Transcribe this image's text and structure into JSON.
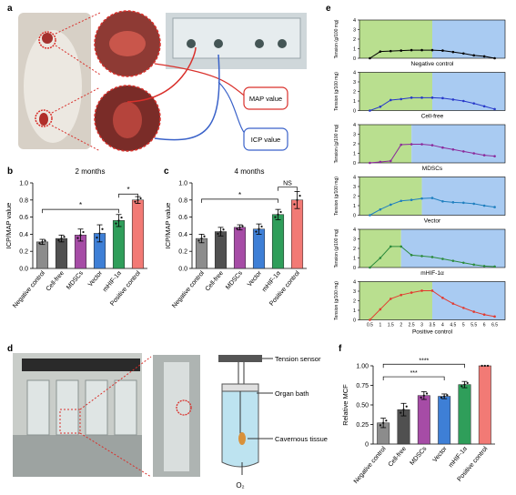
{
  "panel_labels": {
    "a": "a",
    "b": "b",
    "c": "c",
    "d": "d",
    "e": "e",
    "f": "f"
  },
  "panel_a": {
    "map_value": "MAP value",
    "icp_value": "ICP value",
    "colors": {
      "map": "#d9302b",
      "icp": "#3a62c9"
    }
  },
  "panel_d": {
    "tension_sensor": "Tension sensor",
    "organ_bath": "Organ bath",
    "cavernous_tissue": "Cavernous tissue",
    "o2": "O₂"
  },
  "chart_data": [
    {
      "id": "b",
      "type": "bar",
      "title": "2 months",
      "ylabel": "ICP/MAP value",
      "ylim": [
        0,
        1.0
      ],
      "yticks": [
        "0.0",
        "0.2",
        "0.4",
        "0.6",
        "0.8",
        "1.0"
      ],
      "categories": [
        "Negative control",
        "Cell-free",
        "MDSCs",
        "Vector",
        "mHIF-1α",
        "Positive control"
      ],
      "values": [
        0.31,
        0.35,
        0.39,
        0.41,
        0.56,
        0.8
      ],
      "errors": [
        0.03,
        0.04,
        0.07,
        0.1,
        0.07,
        0.04
      ],
      "colors": [
        "#8c8c8c",
        "#505050",
        "#a64ca6",
        "#3e7fd6",
        "#2f9e5a",
        "#f27a75"
      ],
      "sig_labels": [
        "*",
        "*"
      ]
    },
    {
      "id": "c",
      "type": "bar",
      "title": "4 months",
      "ylabel": "ICP/MAP value",
      "ylim": [
        0,
        1.0
      ],
      "yticks": [
        "0.0",
        "0.2",
        "0.4",
        "0.6",
        "0.8",
        "1.0"
      ],
      "categories": [
        "Negative control",
        "Cell-free",
        "MDSCs",
        "Vector",
        "mHIF-1α",
        "Positive control"
      ],
      "values": [
        0.35,
        0.43,
        0.48,
        0.46,
        0.63,
        0.8
      ],
      "errors": [
        0.05,
        0.05,
        0.03,
        0.06,
        0.06,
        0.1
      ],
      "colors": [
        "#8c8c8c",
        "#505050",
        "#a64ca6",
        "#3e7fd6",
        "#2f9e5a",
        "#f27a75"
      ],
      "sig_labels": [
        "*",
        "NS"
      ]
    },
    {
      "id": "f",
      "type": "bar",
      "ylabel": "Relative MCF",
      "ylim": [
        0,
        1.0
      ],
      "yticks": [
        "0",
        "0.25",
        "0.50",
        "0.75",
        "1.00"
      ],
      "categories": [
        "Negative control",
        "Cell-free",
        "MDSCs",
        "Vector",
        "mHIF-1α",
        "Positive control"
      ],
      "values": [
        0.27,
        0.44,
        0.62,
        0.61,
        0.76,
        1.0
      ],
      "errors": [
        0.06,
        0.08,
        0.05,
        0.03,
        0.04,
        0.0
      ],
      "colors": [
        "#8c8c8c",
        "#505050",
        "#a64ca6",
        "#3e7fd6",
        "#2f9e5a",
        "#f27a75"
      ],
      "sig_labels": [
        "***",
        "****"
      ]
    },
    {
      "id": "e",
      "type": "line",
      "ylabel": "Tension (g/100 mg)",
      "ylim": [
        0,
        4
      ],
      "yticks": [
        "0",
        "1",
        "2",
        "3",
        "4"
      ],
      "x": [
        0.5,
        1,
        1.5,
        2,
        2.5,
        3,
        3.5,
        4,
        4.5,
        5,
        5.5,
        6,
        6.5
      ],
      "xticks": [
        "0.5",
        "1",
        "1.5",
        "2",
        "2.5",
        "3",
        "3.5",
        "4",
        "4.5",
        "5",
        "5.5",
        "6",
        "6.5"
      ],
      "background_colors": {
        "green": "#b9df8f",
        "blue": "#a9cbf2"
      },
      "series": [
        {
          "name": "Negative control",
          "color": "#000000",
          "green_end": 3.5,
          "values": [
            0,
            0.7,
            0.75,
            0.8,
            0.85,
            0.85,
            0.85,
            0.8,
            0.65,
            0.5,
            0.3,
            0.2,
            0
          ]
        },
        {
          "name": "Cell-free",
          "color": "#2738c9",
          "green_end": 3.5,
          "values": [
            0,
            0.4,
            1.1,
            1.2,
            1.35,
            1.35,
            1.35,
            1.3,
            1.15,
            1.0,
            0.75,
            0.45,
            0.15
          ]
        },
        {
          "name": "MDSCs",
          "color": "#8b2a9b",
          "green_end": 2.5,
          "values": [
            0,
            0.1,
            0.2,
            1.9,
            1.95,
            1.95,
            1.85,
            1.6,
            1.4,
            1.2,
            1.0,
            0.8,
            0.7
          ]
        },
        {
          "name": "Vector",
          "color": "#1f7fbf",
          "green_end": 3.0,
          "values": [
            0,
            0.6,
            1.1,
            1.5,
            1.6,
            1.75,
            1.8,
            1.45,
            1.35,
            1.3,
            1.2,
            1.0,
            0.85
          ]
        },
        {
          "name": "mHIF-1α",
          "color": "#2c8b3c",
          "green_end": 2.0,
          "values": [
            0,
            1.0,
            2.2,
            2.2,
            1.3,
            1.2,
            1.1,
            0.9,
            0.7,
            0.5,
            0.3,
            0.15,
            0.1
          ]
        },
        {
          "name": "Positive control",
          "color": "#e23a2f",
          "green_end": 3.5,
          "values": [
            0,
            1.1,
            2.2,
            2.6,
            2.85,
            3.05,
            3.05,
            2.3,
            1.7,
            1.25,
            0.85,
            0.55,
            0.35
          ]
        }
      ],
      "xlabel": "Positive control"
    }
  ]
}
